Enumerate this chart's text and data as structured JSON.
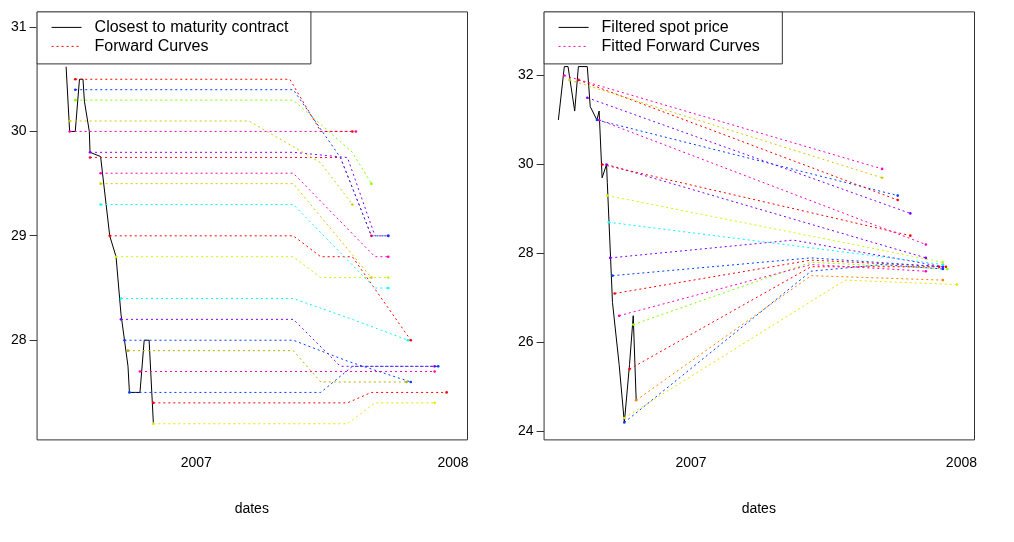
{
  "chart_data": [
    {
      "type": "line",
      "xlabel": "dates",
      "legend": "top left",
      "xlim": [
        "2006-05-19",
        "2008-01-21"
      ],
      "xticks": [
        "2007",
        "2008"
      ],
      "ylim": [
        27.05,
        31.15
      ],
      "yticks": [
        28,
        29,
        30,
        31
      ],
      "series": [
        {
          "name": "Closest to maturity contract",
          "color": "#000000",
          "line_style": "solid",
          "x": [
            "2006-06-30",
            "2006-07-05",
            "2006-07-13",
            "2006-07-19",
            "2006-07-24",
            "2006-07-26",
            "2006-08-02",
            "2006-08-03",
            "2006-08-18",
            "2006-08-31",
            "2006-09-09",
            "2006-09-16",
            "2006-09-21",
            "2006-09-26",
            "2006-09-28",
            "2006-10-13",
            "2006-10-19",
            "2006-10-26",
            "2006-11-01"
          ],
          "values": [
            30.62,
            30.0,
            30.0,
            30.5,
            30.5,
            30.29,
            30.0,
            29.8,
            29.76,
            29.0,
            28.8,
            28.25,
            28.0,
            27.75,
            27.5,
            27.5,
            28.0,
            28.0,
            27.21
          ]
        },
        {
          "name": "Forward Curves",
          "color": "#ff0000",
          "line_style": "dotted",
          "x": [
            "2006-07-13",
            "2007-05-14",
            "2007-06-27",
            "2007-08-11"
          ],
          "values": [
            30.5,
            30.5,
            30.0,
            30.0
          ]
        },
        {
          "color": "#0040ff",
          "line_style": "dotted",
          "x": [
            "2006-07-13",
            "2007-05-19",
            "2007-07-25",
            "2007-09-07",
            "2007-10-01"
          ],
          "values": [
            30.4,
            30.4,
            29.75,
            29.0,
            29.0
          ]
        },
        {
          "color": "#80ff00",
          "line_style": "dotted",
          "x": [
            "2006-07-13",
            "2007-05-19",
            "2007-08-11",
            "2007-09-07"
          ],
          "values": [
            30.3,
            30.3,
            29.8,
            29.5
          ]
        },
        {
          "color": "#cccc00",
          "line_style": "dotted",
          "x": [
            "2006-07-05",
            "2007-03-17",
            "2007-06-27",
            "2007-08-11"
          ],
          "values": [
            30.1,
            30.1,
            29.7,
            29.3
          ]
        },
        {
          "color": "#ff00bf",
          "line_style": "dotted",
          "x": [
            "2006-07-05",
            "2007-08-16"
          ],
          "values": [
            30.0,
            30.0
          ]
        },
        {
          "color": "#8000ff",
          "line_style": "dotted",
          "x": [
            "2006-08-03",
            "2007-05-19",
            "2007-08-04",
            "2007-09-12",
            "2007-10-01"
          ],
          "values": [
            29.8,
            29.8,
            29.75,
            29.0,
            29.0
          ]
        },
        {
          "color": "#ff0040",
          "line_style": "dotted",
          "x": [
            "2006-08-03",
            "2007-07-25",
            "2007-09-07"
          ],
          "values": [
            29.75,
            29.75,
            29.0
          ]
        },
        {
          "color": "#ff00bf",
          "line_style": "dotted",
          "x": [
            "2006-08-18",
            "2007-05-19",
            "2007-09-12",
            "2007-10-01"
          ],
          "values": [
            29.6,
            29.6,
            28.8,
            28.8
          ]
        },
        {
          "color": "#cccc00",
          "line_style": "dotted",
          "x": [
            "2006-08-18",
            "2007-05-19",
            "2007-09-07"
          ],
          "values": [
            29.5,
            29.5,
            28.6
          ]
        },
        {
          "color": "#00ffff",
          "line_style": "dotted",
          "x": [
            "2006-08-18",
            "2007-05-19",
            "2007-09-12",
            "2007-10-01"
          ],
          "values": [
            29.3,
            29.3,
            28.5,
            28.5
          ]
        },
        {
          "color": "#ff0000",
          "line_style": "dotted",
          "x": [
            "2006-08-31",
            "2007-05-19",
            "2007-06-27",
            "2007-08-11",
            "2007-11-02"
          ],
          "values": [
            29.0,
            29.0,
            28.8,
            28.8,
            28.0
          ]
        },
        {
          "color": "#bfff00",
          "line_style": "dotted",
          "x": [
            "2006-09-09",
            "2007-05-19",
            "2007-06-27",
            "2007-10-01"
          ],
          "values": [
            28.8,
            28.8,
            28.6,
            28.6
          ]
        },
        {
          "color": "#00ffff",
          "line_style": "dotted",
          "x": [
            "2006-09-16",
            "2007-05-19",
            "2007-08-11",
            "2007-10-29"
          ],
          "values": [
            28.4,
            28.4,
            28.2,
            28.0
          ]
        },
        {
          "color": "#8000ff",
          "line_style": "dotted",
          "x": [
            "2006-09-16",
            "2007-05-19",
            "2007-07-25",
            "2007-12-06"
          ],
          "values": [
            28.2,
            28.2,
            27.75,
            27.75
          ]
        },
        {
          "color": "#0040ff",
          "line_style": "dotted",
          "x": [
            "2006-09-21",
            "2007-05-19",
            "2007-08-04",
            "2007-11-02"
          ],
          "values": [
            28.0,
            28.0,
            27.8,
            27.6
          ]
        },
        {
          "color": "#b3b300",
          "line_style": "dotted",
          "x": [
            "2006-09-26",
            "2007-05-19",
            "2007-06-27",
            "2007-10-27"
          ],
          "values": [
            27.9,
            27.9,
            27.6,
            27.6
          ]
        },
        {
          "color": "#0040ff",
          "line_style": "dotted",
          "x": [
            "2006-09-28",
            "2007-06-27",
            "2007-08-11",
            "2007-12-11"
          ],
          "values": [
            27.5,
            27.5,
            27.75,
            27.75
          ]
        },
        {
          "color": "#ff00bf",
          "line_style": "dotted",
          "x": [
            "2006-10-13",
            "2007-05-19",
            "2007-12-06"
          ],
          "values": [
            27.7,
            27.7,
            27.7
          ]
        },
        {
          "color": "#ff0000",
          "line_style": "dotted",
          "x": [
            "2006-11-01",
            "2007-08-04",
            "2007-09-07",
            "2007-12-23"
          ],
          "values": [
            27.4,
            27.4,
            27.5,
            27.5
          ]
        },
        {
          "color": "#e6e600",
          "line_style": "dotted",
          "x": [
            "2006-11-01",
            "2007-08-04",
            "2007-09-12",
            "2007-12-06"
          ],
          "values": [
            27.2,
            27.2,
            27.4,
            27.4
          ]
        }
      ]
    },
    {
      "type": "line",
      "xlabel": "dates",
      "legend": "top left",
      "xlim": [
        "2006-06-16",
        "2008-01-18"
      ],
      "xticks": [
        "2007",
        "2008"
      ],
      "ylim": [
        23.82,
        33.44
      ],
      "yticks": [
        24,
        26,
        28,
        30,
        32
      ],
      "series": [
        {
          "name": "Filtered spot price",
          "color": "#000000",
          "line_style": "solid",
          "x": [
            "2006-07-06",
            "2006-07-14",
            "2006-07-19",
            "2006-07-28",
            "2006-08-02",
            "2006-08-14",
            "2006-08-18",
            "2006-08-27",
            "2006-08-30",
            "2006-09-03",
            "2006-09-09",
            "2006-09-10",
            "2006-09-17",
            "2006-09-26",
            "2006-10-03",
            "2006-10-10",
            "2006-10-15",
            "2006-10-19"
          ],
          "values": [
            31.0,
            32.2,
            32.2,
            31.2,
            32.2,
            32.2,
            31.3,
            31.0,
            31.2,
            29.7,
            30.0,
            29.6,
            26.9,
            25.5,
            24.2,
            25.5,
            26.6,
            24.7
          ]
        },
        {
          "name": "Fitted Forward Curves",
          "color": "#ff00bf",
          "line_style": "dotted",
          "x": [
            "2006-07-14",
            "2007-09-16"
          ],
          "values": [
            32.0,
            29.9
          ]
        },
        {
          "color": "#cccc00",
          "line_style": "dotted",
          "x": [
            "2006-07-21",
            "2007-09-16"
          ],
          "values": [
            31.9,
            29.7
          ]
        },
        {
          "color": "#ff0000",
          "line_style": "dotted",
          "x": [
            "2006-08-02",
            "2007-10-07"
          ],
          "values": [
            31.9,
            29.2
          ]
        },
        {
          "color": "#8000ff",
          "line_style": "dotted",
          "x": [
            "2006-08-14",
            "2007-10-24"
          ],
          "values": [
            31.5,
            28.9
          ]
        },
        {
          "color": "#0040ff",
          "line_style": "dotted",
          "x": [
            "2006-08-27",
            "2007-10-07"
          ],
          "values": [
            31.0,
            29.3
          ]
        },
        {
          "color": "#ff00bf",
          "line_style": "dotted",
          "x": [
            "2006-08-30",
            "2007-11-14"
          ],
          "values": [
            31.0,
            28.2
          ]
        },
        {
          "color": "#ff0000",
          "line_style": "dotted",
          "x": [
            "2006-09-03",
            "2007-10-24"
          ],
          "values": [
            30.0,
            28.4
          ]
        },
        {
          "color": "#8000ff",
          "line_style": "dotted",
          "x": [
            "2006-09-09",
            "2007-11-14"
          ],
          "values": [
            30.0,
            27.9
          ]
        },
        {
          "color": "#bfff00",
          "line_style": "dotted",
          "x": [
            "2006-09-10",
            "2007-12-07"
          ],
          "values": [
            29.3,
            27.8
          ]
        },
        {
          "color": "#00ffff",
          "line_style": "dotted",
          "x": [
            "2006-09-12",
            "2007-12-07"
          ],
          "values": [
            28.7,
            27.75
          ]
        },
        {
          "color": "#8000ff",
          "line_style": "dotted",
          "x": [
            "2006-09-14",
            "2007-05-19",
            "2007-12-07"
          ],
          "values": [
            27.9,
            28.3,
            27.7
          ]
        },
        {
          "color": "#0040ff",
          "line_style": "dotted",
          "x": [
            "2006-09-17",
            "2007-06-12",
            "2007-12-07"
          ],
          "values": [
            27.5,
            27.9,
            27.7
          ]
        },
        {
          "color": "#ff0000",
          "line_style": "dotted",
          "x": [
            "2006-09-20",
            "2007-06-12",
            "2007-12-11"
          ],
          "values": [
            27.1,
            27.85,
            27.7
          ]
        },
        {
          "color": "#ff00bf",
          "line_style": "dotted",
          "x": [
            "2006-09-26",
            "2007-06-12",
            "2007-11-14"
          ],
          "values": [
            26.6,
            27.75,
            27.6
          ]
        },
        {
          "color": "#0040ff",
          "line_style": "dotted",
          "x": [
            "2006-10-03",
            "2007-06-12",
            "2007-09-16",
            "2007-12-07"
          ],
          "values": [
            24.2,
            27.6,
            27.75,
            27.65
          ]
        },
        {
          "color": "#e6e600",
          "line_style": "dotted",
          "x": [
            "2006-10-03",
            "2007-07-28",
            "2007-12-26"
          ],
          "values": [
            24.3,
            27.4,
            27.3
          ]
        },
        {
          "color": "#ff0000",
          "line_style": "dotted",
          "x": [
            "2006-10-10",
            "2007-06-12",
            "2007-12-02"
          ],
          "values": [
            25.4,
            27.7,
            27.7
          ]
        },
        {
          "color": "#80ff00",
          "line_style": "dotted",
          "x": [
            "2006-10-15",
            "2007-06-12",
            "2007-12-13"
          ],
          "values": [
            26.4,
            27.8,
            27.65
          ]
        },
        {
          "color": "#ff8000",
          "line_style": "dotted",
          "x": [
            "2006-10-19",
            "2007-06-12",
            "2007-12-07"
          ],
          "values": [
            24.7,
            27.5,
            27.4
          ]
        }
      ]
    }
  ]
}
